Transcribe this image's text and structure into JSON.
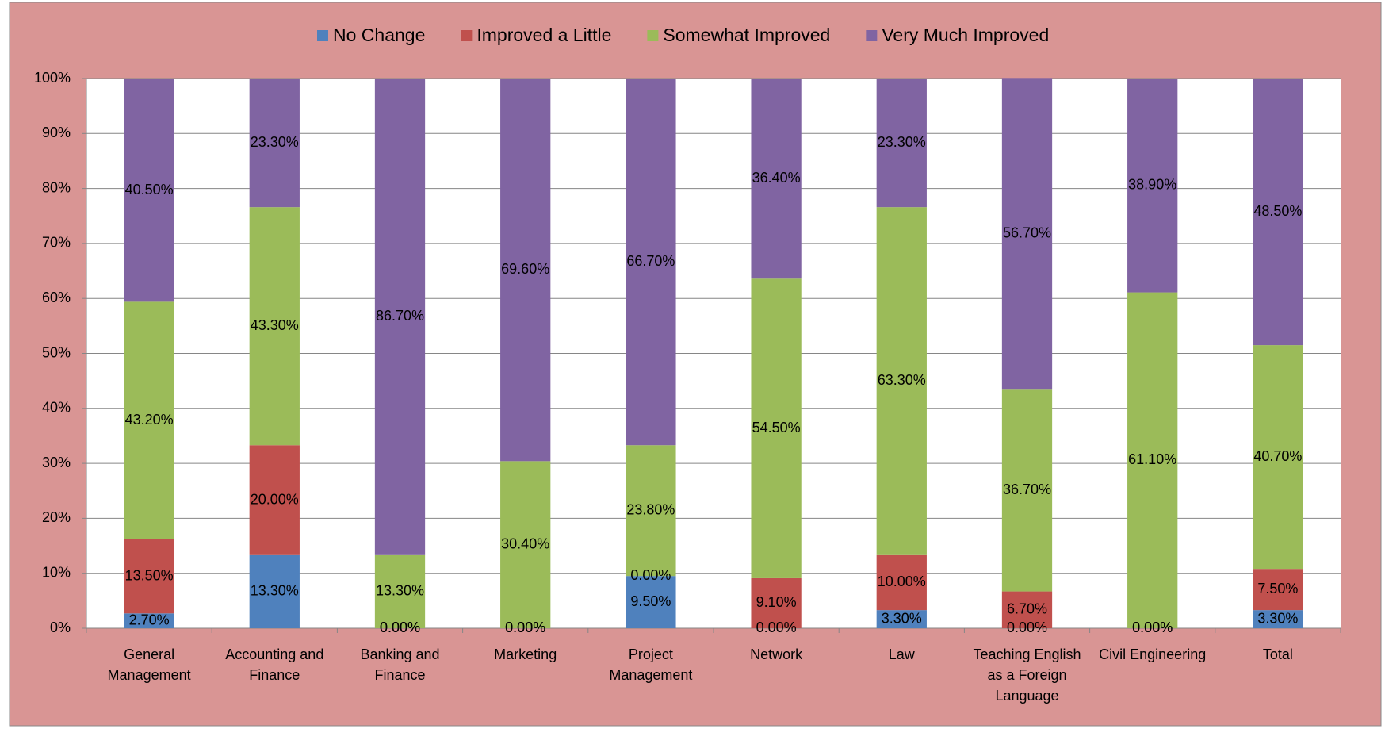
{
  "chart_data": {
    "type": "stacked_bar",
    "categories": [
      "General Management",
      "Accounting and Finance",
      "Banking and Finance",
      "Marketing",
      "Project Management",
      "Network",
      "Law",
      "Teaching English as a Foreign Language",
      "Civil Engineering",
      "Total"
    ],
    "series": [
      {
        "name": "No Change",
        "color": "#4f81bd",
        "values": [
          2.7,
          13.3,
          0,
          0,
          9.5,
          0,
          3.3,
          0,
          0,
          3.3
        ],
        "value_labels": [
          "2.70%",
          "13.30%",
          "0.00%",
          "0.00%",
          "9.50%",
          "0.00%",
          "3.30%",
          "0.00%",
          "0.00%",
          "3.30%"
        ]
      },
      {
        "name": "Improved a Little",
        "color": "#c0504d",
        "values": [
          13.5,
          20.0,
          0,
          0,
          0,
          9.1,
          10.0,
          6.7,
          0,
          7.5
        ],
        "value_labels": [
          "13.50%",
          "20.00%",
          "0.00%",
          "0.00%",
          "0.00%",
          "9.10%",
          "10.00%",
          "6.70%",
          "0.00%",
          "7.50%"
        ]
      },
      {
        "name": "Somewhat Improved",
        "color": "#9bbb59",
        "values": [
          43.2,
          43.3,
          13.3,
          30.4,
          23.8,
          54.5,
          63.3,
          36.7,
          61.1,
          40.7
        ],
        "value_labels": [
          "43.20%",
          "43.30%",
          "13.30%",
          "30.40%",
          "23.80%",
          "54.50%",
          "63.30%",
          "36.70%",
          "61.10%",
          "40.70%"
        ]
      },
      {
        "name": "Very Much Improved",
        "color": "#8064a2",
        "values": [
          40.5,
          23.3,
          86.7,
          69.6,
          66.7,
          36.4,
          23.3,
          56.7,
          38.9,
          48.5
        ],
        "value_labels": [
          "40.50%",
          "23.30%",
          "86.70%",
          "69.60%",
          "66.70%",
          "36.40%",
          "23.30%",
          "56.70%",
          "38.90%",
          "48.50%"
        ]
      }
    ],
    "ylim": [
      0,
      100
    ],
    "yticks": [
      {
        "value": 0,
        "label": "0%"
      },
      {
        "value": 10,
        "label": "10%"
      },
      {
        "value": 20,
        "label": "20%"
      },
      {
        "value": 30,
        "label": "30%"
      },
      {
        "value": 40,
        "label": "40%"
      },
      {
        "value": 50,
        "label": "50%"
      },
      {
        "value": 60,
        "label": "60%"
      },
      {
        "value": 70,
        "label": "70%"
      },
      {
        "value": 80,
        "label": "80%"
      },
      {
        "value": 90,
        "label": "90%"
      },
      {
        "value": 100,
        "label": "100%"
      }
    ],
    "grid": true,
    "legend": "top"
  }
}
